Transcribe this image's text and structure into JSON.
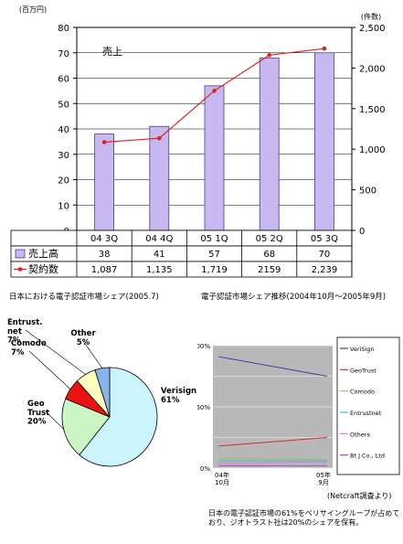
{
  "chart_data": [
    {
      "type": "bar+line",
      "title": "",
      "y_left": {
        "unit": "(百万円)",
        "ylim": [
          0,
          80
        ],
        "ticks": [
          0,
          10,
          20,
          30,
          40,
          50,
          60,
          70,
          80
        ]
      },
      "y_right": {
        "unit": "(件数)",
        "ylim": [
          0,
          2500
        ],
        "ticks": [
          0,
          500,
          1000,
          1500,
          2000,
          2500
        ]
      },
      "categories": [
        "04 3Q",
        "04 4Q",
        "05 1Q",
        "05 2Q",
        "05 3Q"
      ],
      "annotation": "売上",
      "series": [
        {
          "name": "売上高",
          "type": "bar",
          "axis": "left",
          "values": [
            38,
            41,
            57,
            68,
            70
          ],
          "labels": [
            "38",
            "41",
            "57",
            "68",
            "70"
          ],
          "color": "#c8b8f0"
        },
        {
          "name": "契約数",
          "type": "line",
          "axis": "right",
          "values": [
            1087,
            1135,
            1719,
            2159,
            2239
          ],
          "labels": [
            "1,087",
            "1,135",
            "1,719",
            "2159",
            "2,239"
          ],
          "color": "#e02020"
        }
      ],
      "grid": true,
      "legend": "table-below"
    },
    {
      "type": "pie",
      "title": "日本における電子認証市場シェア(2005.7)",
      "slices": [
        {
          "label": "Verisign\n61%",
          "value": 61,
          "color": "#ccf4fc"
        },
        {
          "label": "Geo\nTrust\n20%",
          "value": 20,
          "color": "#ccf5c4"
        },
        {
          "label": "Comodo\n7%",
          "value": 7,
          "color": "#ee1111"
        },
        {
          "label": "Entrust.\nnet\n7%",
          "value": 7,
          "color": "#ffffc0"
        },
        {
          "label": "Other\n5%",
          "value": 5,
          "color": "#88b4ee"
        }
      ]
    },
    {
      "type": "line",
      "title": "電子認証市場シェア推移(2004年10月～2005年9月)",
      "x": [
        "04年\n10月",
        "05年\n9月"
      ],
      "ylim": [
        0,
        100
      ],
      "yticks": [
        "0%",
        "50%",
        "100%"
      ],
      "series": [
        {
          "name": "VeriSign",
          "values": [
            91,
            75
          ],
          "color": "#4040a0"
        },
        {
          "name": "GeoTrust",
          "values": [
            18,
            25
          ],
          "color": "#d03030"
        },
        {
          "name": "Comodo",
          "values": [
            8,
            7
          ],
          "color": "#a0c060"
        },
        {
          "name": "Entrustnet",
          "values": [
            6,
            6
          ],
          "color": "#40c0c0"
        },
        {
          "name": "Others",
          "values": [
            4,
            5
          ],
          "color": "#e080d0"
        },
        {
          "name": "Bt J Co., Ltd",
          "values": [
            2,
            2
          ],
          "color": "#a050c0"
        }
      ],
      "grid": true,
      "legend": "right"
    }
  ],
  "source_note": "(Netcraft調査より)",
  "note": "日本の電子認証市場の61%をベリサイングループが占めており、ジオトラスト社は20%のシェアを保有。"
}
